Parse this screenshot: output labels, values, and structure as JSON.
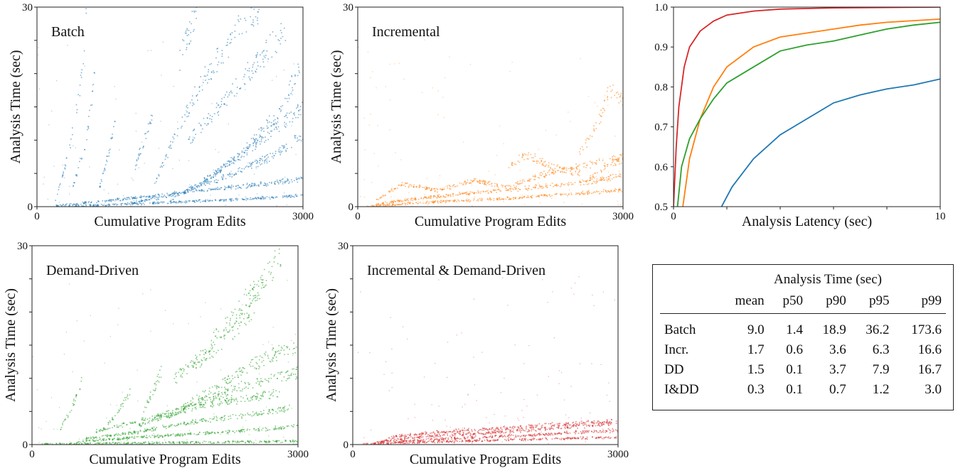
{
  "chart_data": [
    {
      "type": "scatter",
      "panel_label": "Batch",
      "color": "#1f77b4",
      "xlabel": "Cumulative Program Edits",
      "ylabel": "Analysis Time (sec)",
      "xlim": [
        0,
        3000
      ],
      "ylim": [
        0,
        30
      ],
      "xtick_labels": [
        "0",
        "3000"
      ],
      "ytick_labels": [
        "0",
        "30"
      ],
      "series": [
        {
          "x": [
            200,
            800,
            1500,
            2200,
            3000
          ],
          "y": [
            0.2,
            1.0,
            2.0,
            3.0,
            4.2
          ]
        },
        {
          "x": [
            300,
            900,
            1600,
            2300,
            3000
          ],
          "y": [
            0.1,
            0.4,
            0.8,
            1.2,
            1.8
          ]
        },
        {
          "x": [
            1000,
            1600,
            2200,
            2700,
            3000
          ],
          "y": [
            0.5,
            2.0,
            5.0,
            8.0,
            11.0
          ]
        },
        {
          "x": [
            1500,
            2000,
            2500,
            3000
          ],
          "y": [
            1.0,
            5.0,
            10.0,
            15.0
          ]
        },
        {
          "x": [
            1800,
            2300,
            2700,
            3000
          ],
          "y": [
            3.0,
            8.0,
            14.0,
            22.0
          ]
        },
        {
          "x": [
            1300,
            1600,
            1900,
            2200
          ],
          "y": [
            3.0,
            12.0,
            20.0,
            25.0
          ]
        },
        {
          "x": [
            1700,
            2100,
            2500,
            2800
          ],
          "y": [
            10.0,
            16.0,
            22.0,
            27.0
          ]
        },
        {
          "x": [
            200,
            350,
            500,
            550
          ],
          "y": [
            1.0,
            8.0,
            20.0,
            30.0
          ]
        },
        {
          "x": [
            400,
            550,
            650
          ],
          "y": [
            3.0,
            10.0,
            20.0
          ]
        },
        {
          "x": [
            700,
            800,
            900
          ],
          "y": [
            3.0,
            8.0,
            14.0
          ]
        },
        {
          "x": [
            1100,
            1200,
            1300
          ],
          "y": [
            6.0,
            10.0,
            14.0
          ]
        },
        {
          "x": [
            1600,
            1700,
            1800
          ],
          "y": [
            22.0,
            26.0,
            30.0
          ]
        },
        {
          "x": [
            2200,
            2400,
            2500
          ],
          "y": [
            27.0,
            29.0,
            30.0
          ]
        }
      ]
    },
    {
      "type": "scatter",
      "panel_label": "Incremental",
      "color": "#ff7f0e",
      "xlabel": "Cumulative Program Edits",
      "ylabel": "Analysis Time (sec)",
      "xlim": [
        0,
        3000
      ],
      "ylim": [
        0,
        30
      ],
      "xtick_labels": [
        "0",
        "3000"
      ],
      "ytick_labels": [
        "0",
        "30"
      ],
      "series": [
        {
          "x": [
            100,
            600,
            1200,
            1800,
            2400,
            3000
          ],
          "y": [
            0.1,
            0.6,
            1.0,
            1.4,
            2.0,
            2.6
          ]
        },
        {
          "x": [
            200,
            800,
            1400,
            2000,
            2600,
            3000
          ],
          "y": [
            0.5,
            1.5,
            2.3,
            3.0,
            3.8,
            4.8
          ]
        },
        {
          "x": [
            200,
            500,
            900,
            1300,
            1700,
            2100,
            2500,
            3000
          ],
          "y": [
            1.0,
            3.5,
            2.5,
            4.0,
            3.0,
            5.0,
            6.0,
            7.5
          ]
        },
        {
          "x": [
            1700,
            1900,
            2200,
            2500
          ],
          "y": [
            6.0,
            8.0,
            6.0,
            5.0
          ]
        },
        {
          "x": [
            2500,
            2700,
            2850,
            3000
          ],
          "y": [
            8.0,
            12.0,
            18.0,
            16.0
          ]
        },
        {
          "x": [
            2600,
            2800,
            3000
          ],
          "y": [
            4.0,
            6.0,
            7.5
          ]
        }
      ]
    },
    {
      "type": "line",
      "xlabel": "Analysis Latency (sec)",
      "ylabel": "",
      "xlim": [
        0,
        10
      ],
      "ylim": [
        0.5,
        1.0
      ],
      "xtick_labels": [
        "0",
        "10"
      ],
      "ytick_labels": [
        "0.5",
        "0.6",
        "0.7",
        "0.8",
        "0.9",
        "1.0"
      ],
      "series": [
        {
          "color": "#d62728",
          "x": [
            0.0,
            0.1,
            0.2,
            0.4,
            0.6,
            1.0,
            1.5,
            2.0,
            3.0,
            4.0,
            6.0,
            10.0
          ],
          "y": [
            0.5,
            0.65,
            0.75,
            0.85,
            0.9,
            0.94,
            0.965,
            0.98,
            0.99,
            0.995,
            0.998,
            1.0
          ]
        },
        {
          "color": "#ff7f0e",
          "x": [
            0.35,
            0.6,
            1.0,
            1.5,
            2.0,
            3.0,
            4.0,
            5.0,
            6.0,
            7.0,
            8.0,
            9.0,
            10.0
          ],
          "y": [
            0.5,
            0.62,
            0.72,
            0.8,
            0.85,
            0.9,
            0.925,
            0.935,
            0.945,
            0.955,
            0.962,
            0.966,
            0.97
          ]
        },
        {
          "color": "#2ca02c",
          "x": [
            0.15,
            0.3,
            0.6,
            1.0,
            1.5,
            2.0,
            3.0,
            4.0,
            5.0,
            6.0,
            7.0,
            8.0,
            9.0,
            10.0
          ],
          "y": [
            0.5,
            0.6,
            0.67,
            0.72,
            0.77,
            0.81,
            0.85,
            0.89,
            0.905,
            0.915,
            0.93,
            0.945,
            0.955,
            0.962
          ]
        },
        {
          "color": "#1f77b4",
          "x": [
            1.8,
            2.2,
            3.0,
            4.0,
            5.0,
            6.0,
            7.0,
            8.0,
            9.0,
            10.0
          ],
          "y": [
            0.5,
            0.55,
            0.62,
            0.68,
            0.72,
            0.76,
            0.78,
            0.795,
            0.805,
            0.82
          ]
        }
      ]
    },
    {
      "type": "scatter",
      "panel_label": "Demand-Driven",
      "color": "#2ca02c",
      "xlabel": "Cumulative Program Edits",
      "ylabel": "Analysis Time (sec)",
      "xlim": [
        0,
        3000
      ],
      "ylim": [
        0,
        30
      ],
      "xtick_labels": [
        "0",
        "3000"
      ],
      "ytick_labels": [
        "0",
        "30"
      ],
      "series": [
        {
          "x": [
            100,
            600,
            1200,
            1800,
            2400,
            3000
          ],
          "y": [
            0.1,
            0.2,
            0.3,
            0.4,
            0.5,
            0.6
          ]
        },
        {
          "x": [
            500,
            1000,
            1600,
            2200,
            2700,
            3000
          ],
          "y": [
            0.5,
            1.0,
            1.5,
            2.0,
            2.5,
            3.0
          ]
        },
        {
          "x": [
            600,
            1200,
            1800,
            2400,
            2900
          ],
          "y": [
            1.0,
            2.0,
            3.5,
            4.5,
            5.5
          ]
        },
        {
          "x": [
            700,
            1300,
            1900,
            2400,
            2800
          ],
          "y": [
            2.0,
            4.0,
            6.0,
            7.0,
            8.0
          ]
        },
        {
          "x": [
            1200,
            1800,
            2400,
            3000
          ],
          "y": [
            3.0,
            6.0,
            9.0,
            11.0
          ]
        },
        {
          "x": [
            1500,
            2100,
            2600,
            3000
          ],
          "y": [
            4.0,
            9.0,
            13.0,
            15.0
          ]
        },
        {
          "x": [
            1600,
            2100,
            2500
          ],
          "y": [
            10.0,
            15.0,
            21.0
          ]
        },
        {
          "x": [
            1800,
            2300,
            2600
          ],
          "y": [
            12.0,
            20.0,
            25.0
          ]
        },
        {
          "x": [
            2400,
            2600,
            2800
          ],
          "y": [
            20.0,
            25.0,
            28.5
          ]
        },
        {
          "x": [
            300,
            450,
            560
          ],
          "y": [
            2.0,
            6.0,
            10.0
          ]
        },
        {
          "x": [
            850,
            1000,
            1100
          ],
          "y": [
            3.0,
            6.0,
            8.0
          ]
        },
        {
          "x": [
            1250,
            1350,
            1450
          ],
          "y": [
            5.0,
            8.0,
            11.0
          ]
        }
      ]
    },
    {
      "type": "scatter",
      "panel_label": "Incremental & Demand-Driven",
      "color": "#d62728",
      "xlabel": "Cumulative Program Edits",
      "ylabel": "Analysis Time (sec)",
      "xlim": [
        0,
        3000
      ],
      "ylim": [
        0,
        30
      ],
      "xtick_labels": [
        "0",
        "3000"
      ],
      "ytick_labels": [
        "0",
        "30"
      ],
      "series": [
        {
          "x": [
            100,
            600,
            1200,
            1800,
            2400,
            3000
          ],
          "y": [
            0.1,
            0.4,
            0.6,
            0.8,
            1.0,
            1.2
          ]
        },
        {
          "x": [
            200,
            800,
            1400,
            2000,
            2600,
            3000
          ],
          "y": [
            0.3,
            0.8,
            1.2,
            1.5,
            2.0,
            2.2
          ]
        },
        {
          "x": [
            300,
            900,
            1500,
            2100,
            2700,
            3000
          ],
          "y": [
            0.6,
            1.4,
            1.8,
            2.4,
            3.0,
            3.5
          ]
        },
        {
          "x": [
            400,
            1000,
            1600,
            2200,
            2800,
            2950
          ],
          "y": [
            1.2,
            2.0,
            2.5,
            3.0,
            3.5,
            3.8
          ]
        }
      ]
    }
  ],
  "table": {
    "caption": "Analysis Time (sec)",
    "columns": [
      "",
      "mean",
      "p50",
      "p90",
      "p95",
      "p99"
    ],
    "rows": [
      [
        "Batch",
        "9.0",
        "1.4",
        "18.9",
        "36.2",
        "173.6"
      ],
      [
        "Incr.",
        "1.7",
        "0.6",
        "3.6",
        "6.3",
        "16.6"
      ],
      [
        "DD",
        "1.5",
        "0.1",
        "3.7",
        "7.9",
        "16.7"
      ],
      [
        "I&DD",
        "0.3",
        "0.1",
        "0.7",
        "1.2",
        "3.0"
      ]
    ]
  }
}
